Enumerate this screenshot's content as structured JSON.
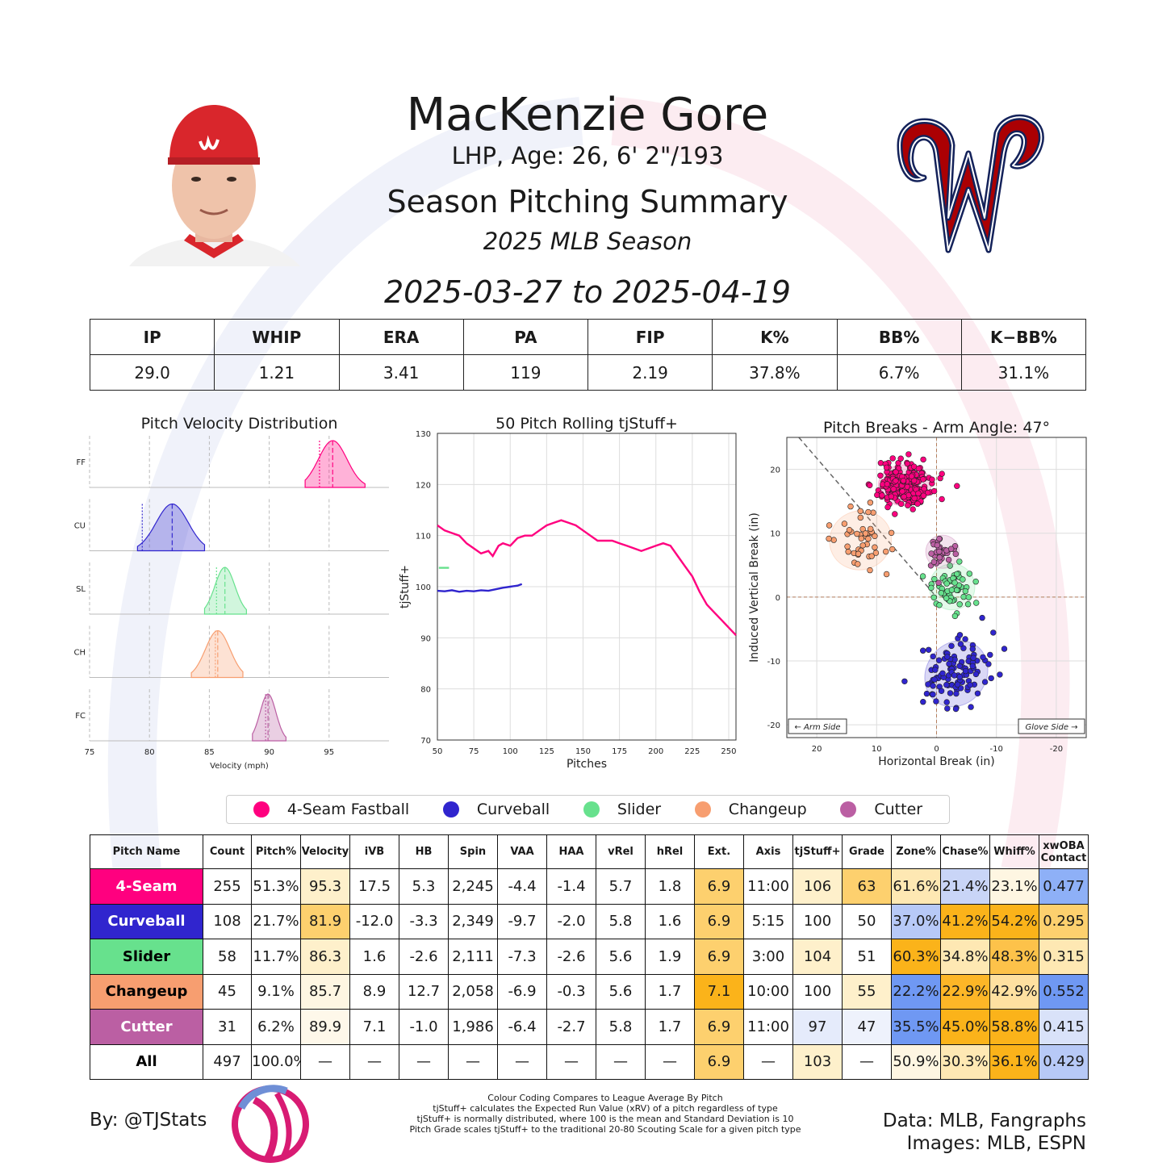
{
  "header": {
    "player_name": "MacKenzie Gore",
    "bio": "LHP, Age: 26, 6' 2\"/193",
    "title": "Season Pitching Summary",
    "season": "2025 MLB Season",
    "date_range": "2025-03-27 to 2025-04-19"
  },
  "season_stats": {
    "headers": [
      "IP",
      "WHIP",
      "ERA",
      "PA",
      "FIP",
      "K%",
      "BB%",
      "K−BB%"
    ],
    "values": [
      "29.0",
      "1.21",
      "3.41",
      "119",
      "2.19",
      "37.8%",
      "6.7%",
      "31.1%"
    ]
  },
  "chart_data": [
    {
      "type": "area",
      "title": "Pitch Velocity Distribution",
      "xlabel": "Velocity (mph)",
      "xlim": [
        75,
        100
      ],
      "xticks": [
        75,
        80,
        85,
        90,
        95
      ],
      "rows": [
        {
          "label": "FF",
          "color": "#ff007f",
          "min": 93.0,
          "max": 98.0,
          "mean": 95.3,
          "league": 94.2
        },
        {
          "label": "CU",
          "color": "#3025ce",
          "min": 79.0,
          "max": 84.6,
          "mean": 81.9,
          "league": 79.4
        },
        {
          "label": "SL",
          "color": "#67e18d",
          "min": 84.6,
          "max": 88.1,
          "mean": 86.3,
          "league": 85.6
        },
        {
          "label": "CH",
          "color": "#f79e70",
          "min": 83.5,
          "max": 87.8,
          "mean": 85.7,
          "league": 85.5
        },
        {
          "label": "FC",
          "color": "#bb5fa3",
          "min": 88.6,
          "max": 91.4,
          "mean": 89.9,
          "league": 89.7
        }
      ]
    },
    {
      "type": "line",
      "title": "50 Pitch Rolling tjStuff+",
      "xlabel": "Pitches",
      "ylabel": "tjStuff+",
      "xlim": [
        50,
        255
      ],
      "ylim": [
        70,
        130
      ],
      "xticks": [
        50,
        75,
        100,
        125,
        150,
        175,
        200,
        225,
        250
      ],
      "yticks": [
        70,
        80,
        90,
        100,
        110,
        120,
        130
      ],
      "series": [
        {
          "color": "#ff007f",
          "x": [
            50,
            55,
            60,
            65,
            70,
            75,
            80,
            85,
            88,
            92,
            95,
            100,
            105,
            110,
            115,
            120,
            125,
            130,
            135,
            140,
            145,
            150,
            155,
            160,
            165,
            170,
            175,
            180,
            185,
            190,
            195,
            200,
            205,
            210,
            215,
            220,
            225,
            230,
            235,
            240,
            245,
            250,
            255
          ],
          "y": [
            112,
            111,
            110.5,
            110,
            108.5,
            107.5,
            106.5,
            107,
            106,
            108,
            108.5,
            108,
            109.5,
            110,
            110,
            111,
            112,
            112.5,
            113,
            112.5,
            112,
            111,
            110,
            109,
            109,
            109,
            108.5,
            108,
            107.5,
            107,
            107.5,
            108,
            108.5,
            108,
            106,
            104,
            102,
            99,
            96.5,
            95,
            93.5,
            92,
            90.5
          ]
        },
        {
          "color": "#3025ce",
          "x": [
            50,
            55,
            60,
            65,
            70,
            75,
            80,
            85,
            90,
            95,
            100,
            105,
            108
          ],
          "y": [
            99.2,
            99.1,
            99.3,
            99.0,
            99.2,
            99.1,
            99.3,
            99.2,
            99.5,
            99.8,
            100.0,
            100.2,
            100.5
          ]
        },
        {
          "color": "#67e18d",
          "x": [
            51,
            58
          ],
          "y": [
            103.7,
            103.7
          ]
        }
      ]
    },
    {
      "type": "scatter",
      "title": "Pitch Breaks - Arm Angle: 47°",
      "xlabel": "Horizontal Break (in)",
      "ylabel": "Induced Vertical Break (in)",
      "xlim": [
        25,
        -25
      ],
      "ylim": [
        -22,
        25
      ],
      "xticks": [
        20,
        10,
        0,
        -10,
        -20
      ],
      "yticks": [
        20,
        10,
        0,
        -10,
        -20
      ],
      "arm_side_label": "← Arm Side",
      "glove_side_label": "Glove Side →",
      "series": [
        {
          "name": "4-Seam Fastball",
          "color": "#ff007f",
          "count": 255,
          "mean_hb": 5.3,
          "mean_ivb": 17.5,
          "sd_hb": 2.2,
          "sd_ivb": 1.6
        },
        {
          "name": "Curveball",
          "color": "#3025ce",
          "count": 108,
          "mean_hb": -3.3,
          "mean_ivb": -12.0,
          "sd_hb": 2.5,
          "sd_ivb": 2.7
        },
        {
          "name": "Slider",
          "color": "#67e18d",
          "count": 58,
          "mean_hb": -2.6,
          "mean_ivb": 1.6,
          "sd_hb": 1.9,
          "sd_ivb": 1.8
        },
        {
          "name": "Changeup",
          "color": "#f79e70",
          "count": 45,
          "mean_hb": 12.7,
          "mean_ivb": 8.9,
          "sd_hb": 2.6,
          "sd_ivb": 2.3
        },
        {
          "name": "Cutter",
          "color": "#bb5fa3",
          "count": 31,
          "mean_hb": -1.0,
          "mean_ivb": 7.1,
          "sd_hb": 1.4,
          "sd_ivb": 1.3
        }
      ]
    }
  ],
  "legend": [
    {
      "label": "4-Seam Fastball",
      "color": "#ff007f"
    },
    {
      "label": "Curveball",
      "color": "#3025ce"
    },
    {
      "label": "Slider",
      "color": "#67e18d"
    },
    {
      "label": "Changeup",
      "color": "#f79e70"
    },
    {
      "label": "Cutter",
      "color": "#bb5fa3"
    }
  ],
  "pitch_table": {
    "headers": [
      "Pitch Name",
      "Count",
      "Pitch%",
      "Velocity",
      "iVB",
      "HB",
      "Spin",
      "VAA",
      "HAA",
      "vRel",
      "hRel",
      "Ext.",
      "Axis",
      "tjStuff+",
      "Grade",
      "Zone%",
      "Chase%",
      "Whiff%",
      "xwOBA Contact"
    ],
    "rows": [
      {
        "name": "4-Seam",
        "name_bg": "#ff007f",
        "name_fg": "#ffffff",
        "cells": [
          "255",
          "51.3%",
          "95.3",
          "17.5",
          "5.3",
          "2,245",
          "-4.4",
          "-1.4",
          "5.7",
          "1.8",
          "6.9",
          "11:00",
          "106",
          "63",
          "61.6%",
          "21.4%",
          "23.1%",
          "0.477"
        ],
        "bg": [
          "",
          "",
          "#fef0cb",
          "",
          "",
          "",
          "",
          "",
          "",
          "",
          "#fdd06e",
          "",
          "#fef0cb",
          "#fdd06e",
          "#fee8b3",
          "#c9d5f7",
          "#fef6e2",
          "#8eb0f7"
        ]
      },
      {
        "name": "Curveball",
        "name_bg": "#3025ce",
        "name_fg": "#ffffff",
        "cells": [
          "108",
          "21.7%",
          "81.9",
          "-12.0",
          "-3.3",
          "2,349",
          "-9.7",
          "-2.0",
          "5.8",
          "1.6",
          "6.9",
          "5:15",
          "100",
          "50",
          "37.0%",
          "41.2%",
          "54.2%",
          "0.295"
        ],
        "bg": [
          "",
          "",
          "#fdd06e",
          "",
          "",
          "",
          "",
          "",
          "",
          "",
          "#fdd06e",
          "",
          "",
          "",
          "#b7c9f7",
          "#fbb31a",
          "#fbb31a",
          "#fdd06e"
        ]
      },
      {
        "name": "Slider",
        "name_bg": "#67e18d",
        "name_fg": "#000000",
        "cells": [
          "58",
          "11.7%",
          "86.3",
          "1.6",
          "-2.6",
          "2,111",
          "-7.3",
          "-2.6",
          "5.6",
          "1.9",
          "6.9",
          "3:00",
          "104",
          "51",
          "60.3%",
          "34.8%",
          "48.3%",
          "0.315"
        ],
        "bg": [
          "",
          "",
          "#fef0cb",
          "",
          "",
          "",
          "",
          "",
          "",
          "",
          "#fdd06e",
          "",
          "#fef0cb",
          "",
          "#fbb31a",
          "#fee8b3",
          "#fdc24a",
          "#fee8b3"
        ]
      },
      {
        "name": "Changeup",
        "name_bg": "#f79e70",
        "name_fg": "#000000",
        "cells": [
          "45",
          "9.1%",
          "85.7",
          "8.9",
          "12.7",
          "2,058",
          "-6.9",
          "-0.3",
          "5.6",
          "1.7",
          "7.1",
          "10:00",
          "100",
          "55",
          "22.2%",
          "22.9%",
          "42.9%",
          "0.552"
        ],
        "bg": [
          "",
          "",
          "#fef6e2",
          "",
          "",
          "",
          "",
          "",
          "",
          "",
          "#fbb31a",
          "",
          "",
          "#fef0cb",
          "#6f98f3",
          "#fdb627",
          "#fee0a0",
          "#6f98f3"
        ]
      },
      {
        "name": "Cutter",
        "name_bg": "#bb5fa3",
        "name_fg": "#ffffff",
        "cells": [
          "31",
          "6.2%",
          "89.9",
          "7.1",
          "-1.0",
          "1,986",
          "-6.4",
          "-2.7",
          "5.8",
          "1.7",
          "6.9",
          "11:00",
          "97",
          "47",
          "35.5%",
          "45.0%",
          "58.8%",
          "0.415"
        ],
        "bg": [
          "",
          "",
          "#fef8ea",
          "",
          "",
          "",
          "",
          "",
          "",
          "",
          "#fdd06e",
          "",
          "#e5ebfb",
          "#eef2fc",
          "#6f98f3",
          "#fbb31a",
          "#fbb31a",
          "#d9e2f9"
        ]
      },
      {
        "name": "All",
        "name_bg": "#ffffff",
        "name_fg": "#000000",
        "cells": [
          "497",
          "100.0%",
          "—",
          "—",
          "—",
          "—",
          "—",
          "—",
          "—",
          "—",
          "6.9",
          "—",
          "103",
          "—",
          "50.9%",
          "30.3%",
          "36.1%",
          "0.429"
        ],
        "bg": [
          "",
          "",
          "",
          "",
          "",
          "",
          "",
          "",
          "",
          "",
          "#fdd06e",
          "",
          "#fef0cb",
          "",
          "#fef6e2",
          "#fee8b3",
          "#fbb31a",
          "#b7c9f7"
        ]
      }
    ]
  },
  "footer": {
    "byline": "By: @TJStats",
    "notes": [
      "Colour Coding Compares to League Average By Pitch",
      "tjStuff+ calculates the Expected Run Value (xRV) of a pitch regardless of type",
      "tjStuff+ is normally distributed, where 100 is the mean and Standard Deviation is 10",
      "Pitch Grade scales tjStuff+ to the traditional 20-80 Scouting Scale for a given pitch type"
    ],
    "data_credit": "Data: MLB, Fangraphs",
    "image_credit": "Images: MLB, ESPN"
  },
  "colors": {
    "nats_red": "#ab0003",
    "nats_navy": "#14225a",
    "bg_arc_blue": "#e9edf8",
    "bg_arc_pink": "#fbe7ee"
  }
}
